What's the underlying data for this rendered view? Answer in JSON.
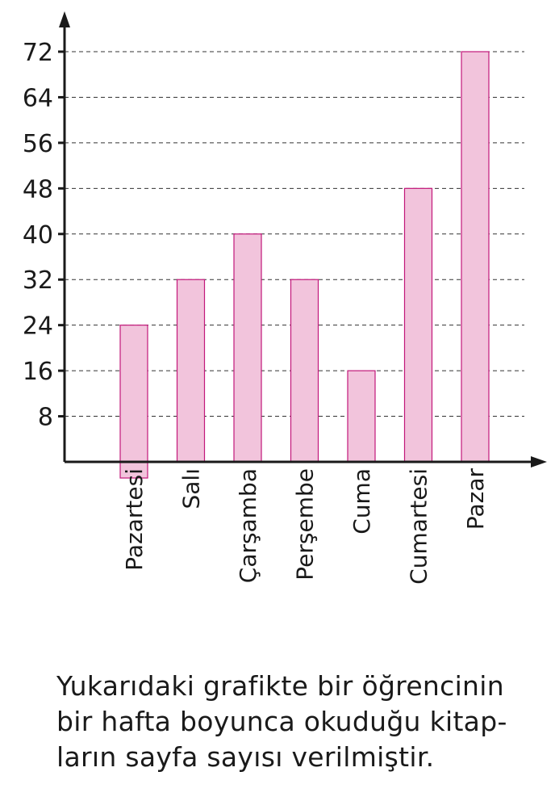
{
  "chart_data": {
    "type": "bar",
    "categories": [
      "Pazartesi",
      "Salı",
      "Çarşamba",
      "Perşembe",
      "Cuma",
      "Cumartesi",
      "Pazar"
    ],
    "values": [
      24,
      32,
      40,
      32,
      16,
      48,
      72
    ],
    "yticks": [
      8,
      16,
      24,
      32,
      40,
      48,
      56,
      64,
      72
    ],
    "ylim": [
      0,
      72
    ],
    "grid": "dashed horizontal",
    "title": "",
    "xlabel": "",
    "ylabel": "",
    "bar_color": "#f2c4dc",
    "bar_edge_color": "#c2187a",
    "axis_color": "#1a1a1a"
  },
  "caption": {
    "lines": [
      "Yukarıdaki grafikte bir öğrencinin",
      "bir hafta boyunca okuduğu kitap-",
      "ların sayfa sayısı verilmiştir."
    ]
  }
}
